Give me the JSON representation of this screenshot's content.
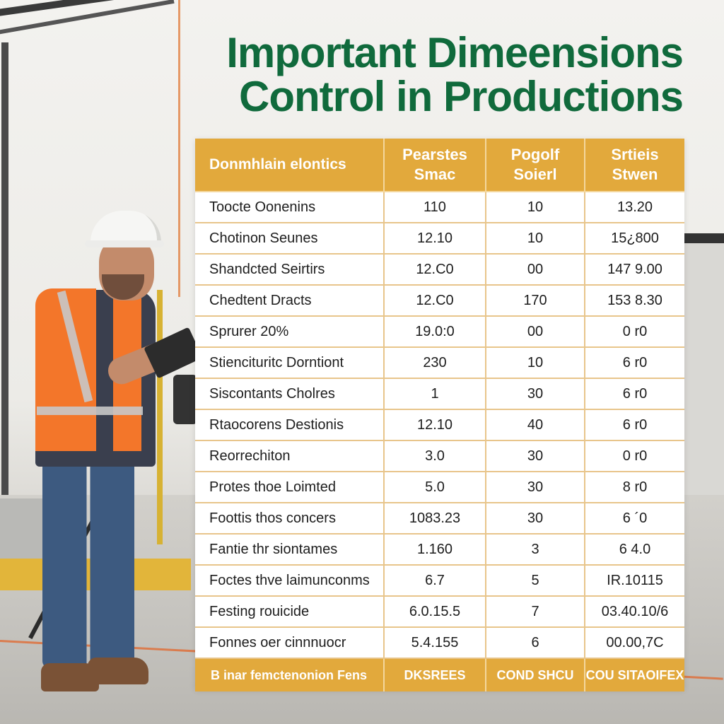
{
  "title": {
    "line1": "Important Dimeensions",
    "line2": "Control in Productions"
  },
  "colors": {
    "title_green": "#106a3c",
    "header_orange": "#e2a93c",
    "grid_line": "#e8c58b"
  },
  "table": {
    "headers": [
      {
        "line1": "Donmhlain elontics",
        "line2": ""
      },
      {
        "line1": "Pearstes",
        "line2": "Smac"
      },
      {
        "line1": "Pogolf",
        "line2": "Soierl"
      },
      {
        "line1": "Srtieis",
        "line2": "Stwen"
      }
    ],
    "rows": [
      [
        "Toocte Oonenins",
        "110",
        "10",
        "13.20"
      ],
      [
        "Chotinon Seunes",
        "12.10",
        "10",
        "15¿800"
      ],
      [
        "Shandcted Seirtirs",
        "12.C0",
        "00",
        "147 9.00"
      ],
      [
        "Chedtent Dracts",
        "12.C0",
        "170",
        "153 8.30"
      ],
      [
        "Sprurer 20%",
        "19.0:0",
        "00",
        "0 r0"
      ],
      [
        "Stiencituritc Dorntiont",
        "230",
        "10",
        "6 r0"
      ],
      [
        "Siscontants Cholres",
        "1",
        "30",
        "6 r0"
      ],
      [
        "Rtaocorens Destionis",
        "12.10",
        "40",
        "6 r0"
      ],
      [
        "Reorrechiton",
        "3.0",
        "30",
        "0 r0"
      ],
      [
        "Protes thoe Loimted",
        "5.0",
        "30",
        "8 r0"
      ],
      [
        "Foottis thos concers",
        "1083.23",
        "30",
        "6 ´0"
      ],
      [
        "Fantie thr siontames",
        "1.160",
        "3",
        "6 4.0"
      ],
      [
        "Foctes thve laimunconms",
        "6.7",
        "5",
        "IR.10115"
      ],
      [
        "Festing rouicide",
        "6.0.15.5",
        "7",
        "03.40.10/6"
      ],
      [
        "Fonnes oer cinnnuocr",
        "5.4.155",
        "6",
        "00.00,7C"
      ]
    ],
    "footer": [
      "B inar femctenonion Fens",
      "DKSREES",
      "COND SHCU",
      "COU SITAOIFEX"
    ]
  }
}
